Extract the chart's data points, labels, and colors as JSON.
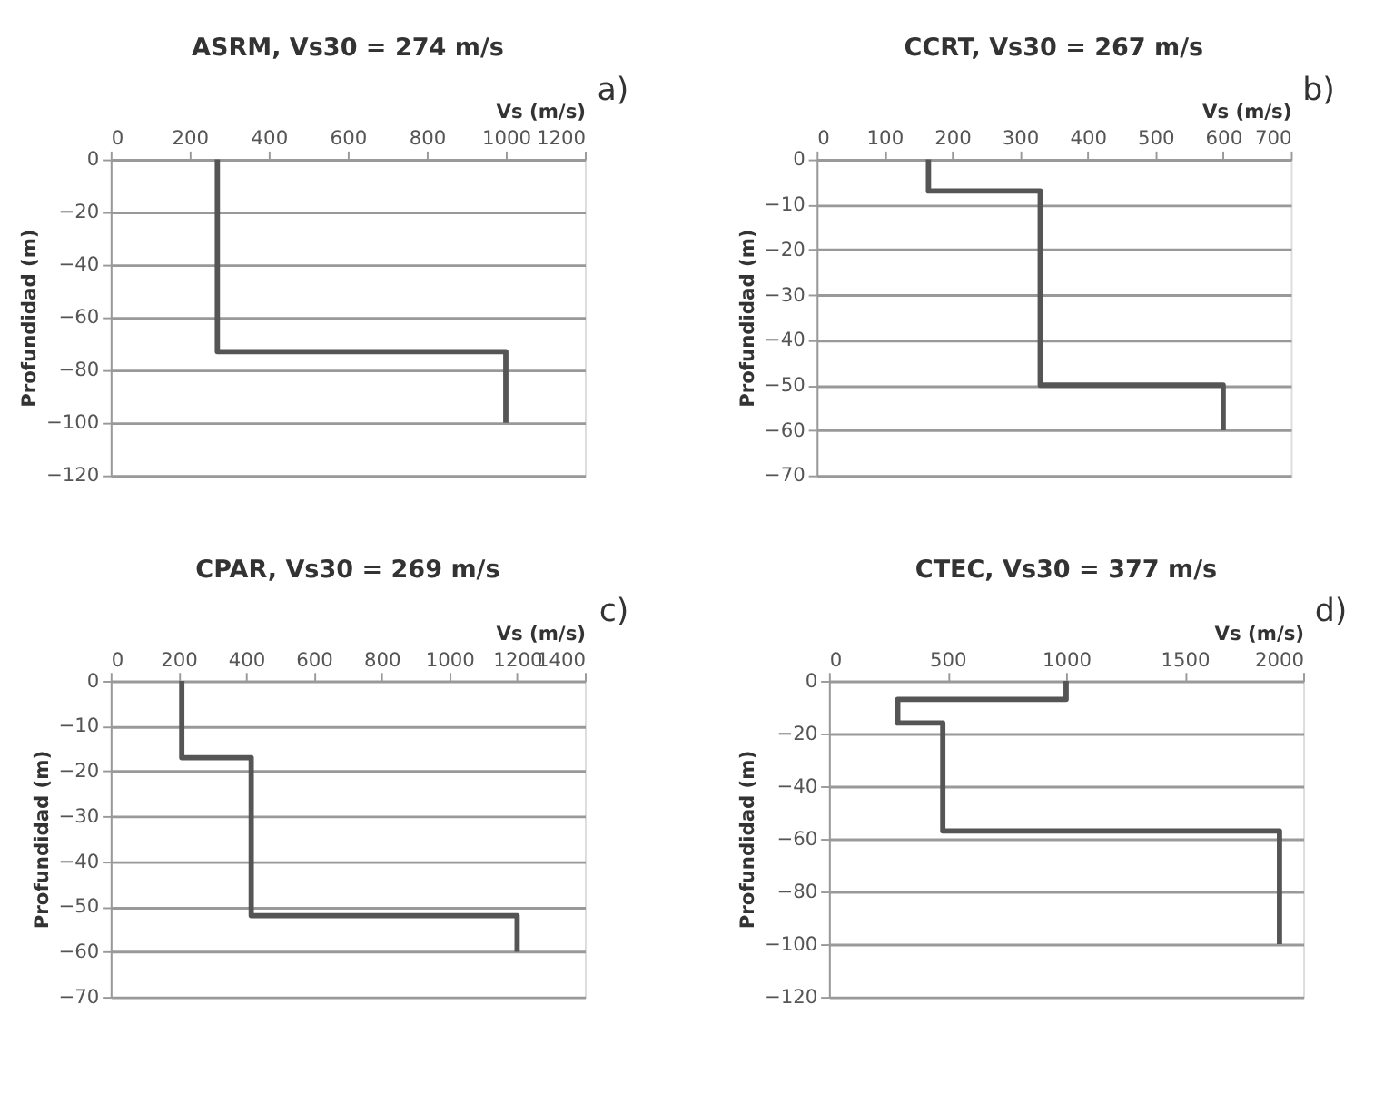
{
  "chart_data": [
    {
      "type": "line",
      "title": "ASRM, Vs30 = 274 m/s",
      "xlabel": "Vs (m/s)",
      "ylabel": "Profundidad (m)",
      "annotations": [
        "a)"
      ],
      "xlim": [
        0,
        1200
      ],
      "xticks": [
        0,
        200,
        400,
        600,
        800,
        1000,
        1200
      ],
      "ylim": [
        -120,
        0
      ],
      "yticks": [
        0,
        -20,
        -40,
        -60,
        -80,
        -100,
        -120
      ],
      "grid": "y",
      "marker": "none",
      "line_style": "solid",
      "series": [
        {
          "color": "#555555",
          "x": [
            270,
            270,
            1000,
            1000
          ],
          "values": [
            0,
            -73,
            -73,
            -100
          ]
        }
      ]
    },
    {
      "type": "line",
      "title": "CCRT, Vs30 = 267 m/s",
      "xlabel": "Vs (m/s)",
      "ylabel": "Profundidad (m)",
      "annotations": [
        "b)"
      ],
      "xlim": [
        0,
        700
      ],
      "xticks": [
        0,
        100,
        200,
        300,
        400,
        500,
        600,
        700
      ],
      "ylim": [
        -70,
        0
      ],
      "yticks": [
        0,
        -10,
        -20,
        -30,
        -40,
        -50,
        -60,
        -70
      ],
      "grid": "y",
      "marker": "none",
      "line_style": "solid",
      "series": [
        {
          "color": "#555555",
          "x": [
            165,
            165,
            330,
            330,
            600,
            600
          ],
          "values": [
            0,
            -7,
            -7,
            -50,
            -50,
            -60
          ]
        }
      ]
    },
    {
      "type": "line",
      "title": "CPAR, Vs30 = 269 m/s",
      "xlabel": "Vs (m/s)",
      "ylabel": "Profundidad (m)",
      "annotations": [
        "c)"
      ],
      "xlim": [
        0,
        1400
      ],
      "xticks": [
        0,
        200,
        400,
        600,
        800,
        1000,
        1200,
        1400
      ],
      "ylim": [
        -70,
        0
      ],
      "yticks": [
        0,
        -10,
        -20,
        -30,
        -40,
        -50,
        -60,
        -70
      ],
      "grid": "y",
      "marker": "none",
      "line_style": "solid",
      "series": [
        {
          "color": "#555555",
          "x": [
            210,
            210,
            415,
            415,
            1200,
            1200
          ],
          "values": [
            0,
            -17,
            -17,
            -52,
            -52,
            -60
          ]
        }
      ]
    },
    {
      "type": "line",
      "title": "CTEC, Vs30 = 377 m/s",
      "xlabel": "Vs (m/s)",
      "ylabel": "Profundidad (m)",
      "annotations": [
        "d)"
      ],
      "xlim": [
        0,
        2000
      ],
      "xticks": [
        0,
        500,
        1000,
        1500,
        2000
      ],
      "ylim": [
        -120,
        0
      ],
      "yticks": [
        0,
        -20,
        -40,
        -60,
        -80,
        -100,
        -120
      ],
      "grid": "y",
      "marker": "none",
      "line_style": "solid",
      "series": [
        {
          "color": "#555555",
          "x": [
            1000,
            1000,
            290,
            290,
            480,
            480,
            1900,
            1900
          ],
          "values": [
            0,
            -7,
            -7,
            -16,
            -16,
            -57,
            -57,
            -100
          ]
        }
      ]
    }
  ]
}
